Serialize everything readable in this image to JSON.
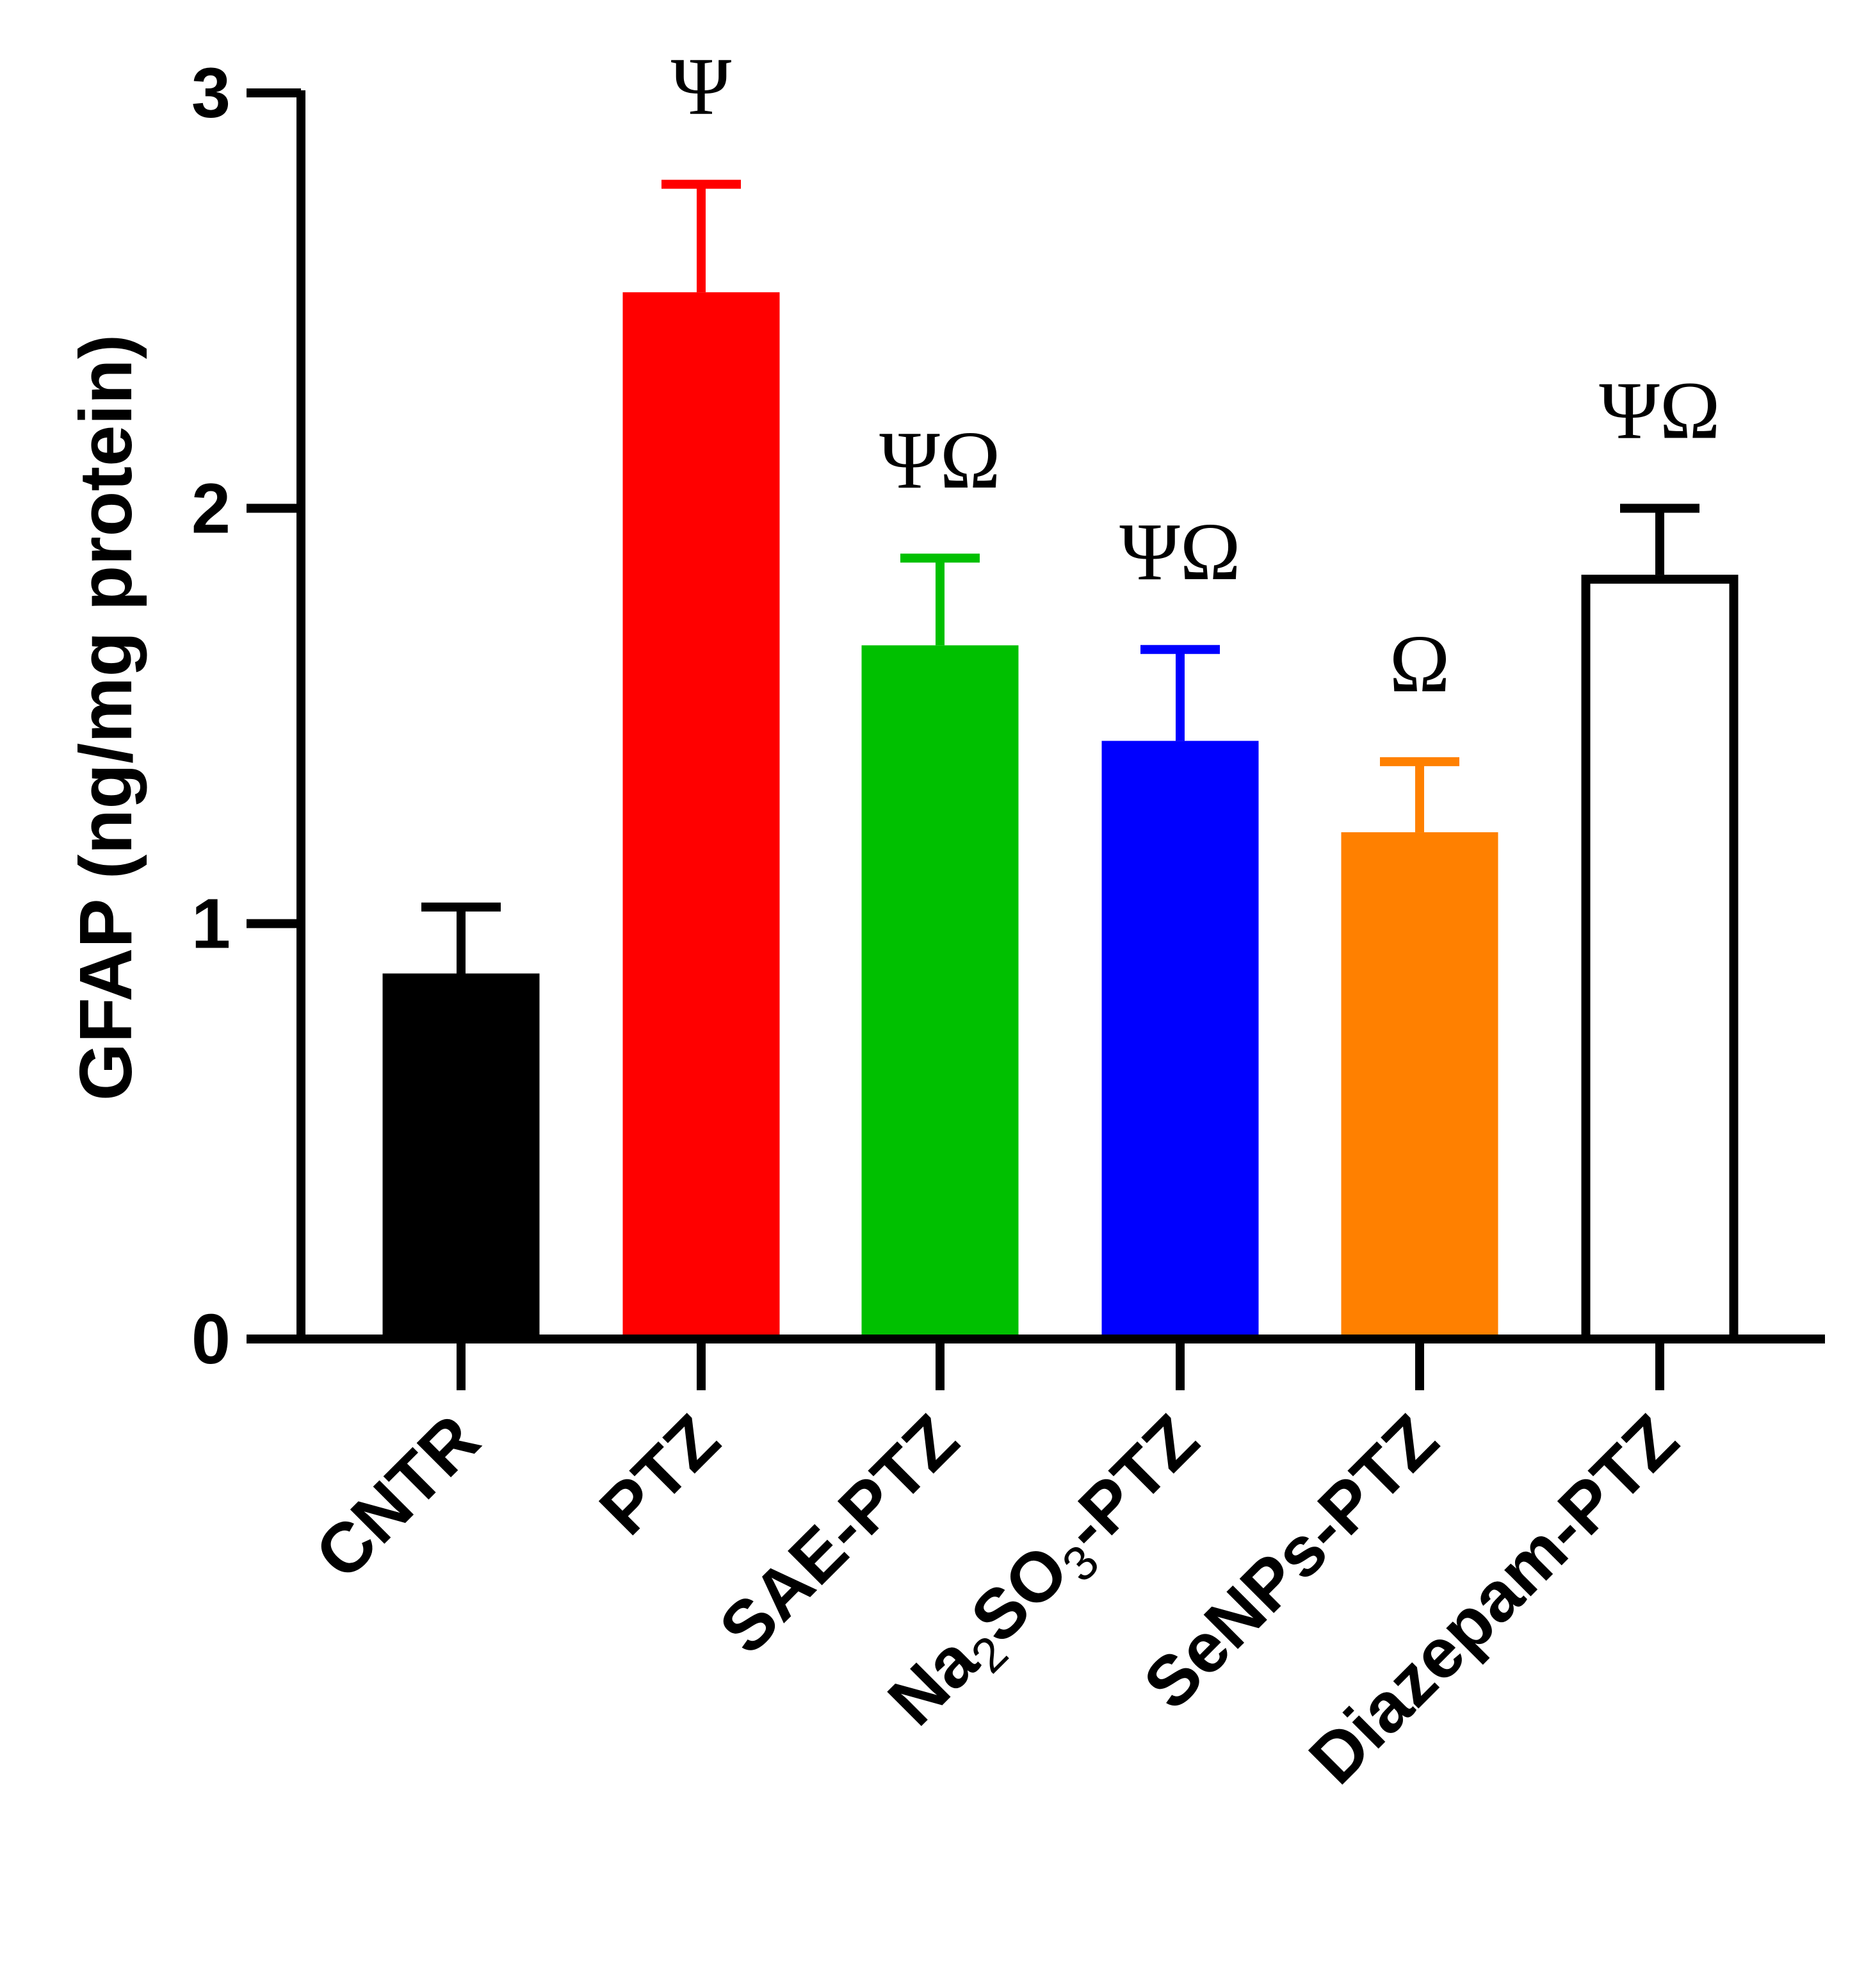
{
  "chart_data": {
    "type": "bar",
    "title": "",
    "xlabel": "",
    "ylabel": "GFAP (ng/mg protein)",
    "ylim": [
      0,
      3
    ],
    "yticks": [
      "0",
      "1",
      "2",
      "3"
    ],
    "grid": false,
    "categories": [
      {
        "name": "CNTR",
        "label_main": "CNTR",
        "label_sub": "",
        "label_tail": ""
      },
      {
        "name": "PTZ",
        "label_main": "PTZ",
        "label_sub": "",
        "label_tail": ""
      },
      {
        "name": "SAE-PTZ",
        "label_main": "SAE-PTZ",
        "label_sub": "",
        "label_tail": ""
      },
      {
        "name": "Na2SO3-PTZ",
        "label_main": "Na",
        "label_sub": "2",
        "label_mid": "SO",
        "label_sub2": "3",
        "label_tail": "-PTZ"
      },
      {
        "name": "SeNPs-PTZ",
        "label_main": "SeNPs-PTZ",
        "label_sub": "",
        "label_tail": ""
      },
      {
        "name": "Diazepam-PTZ",
        "label_main": "Diazepam-PTZ",
        "label_sub": "",
        "label_tail": ""
      }
    ],
    "values": [
      0.88,
      2.52,
      1.67,
      1.44,
      1.22,
      1.84
    ],
    "errors": [
      0.16,
      0.26,
      0.21,
      0.22,
      0.17,
      0.16
    ],
    "annotations": [
      "",
      "Ψ",
      "ΨΩ",
      "ΨΩ",
      "Ω",
      "ΨΩ"
    ],
    "colors": [
      "#000000",
      "#ff0000",
      "#00c000",
      "#0000ff",
      "#ff8000",
      "#ffffff"
    ],
    "edge_color": "#000000"
  }
}
